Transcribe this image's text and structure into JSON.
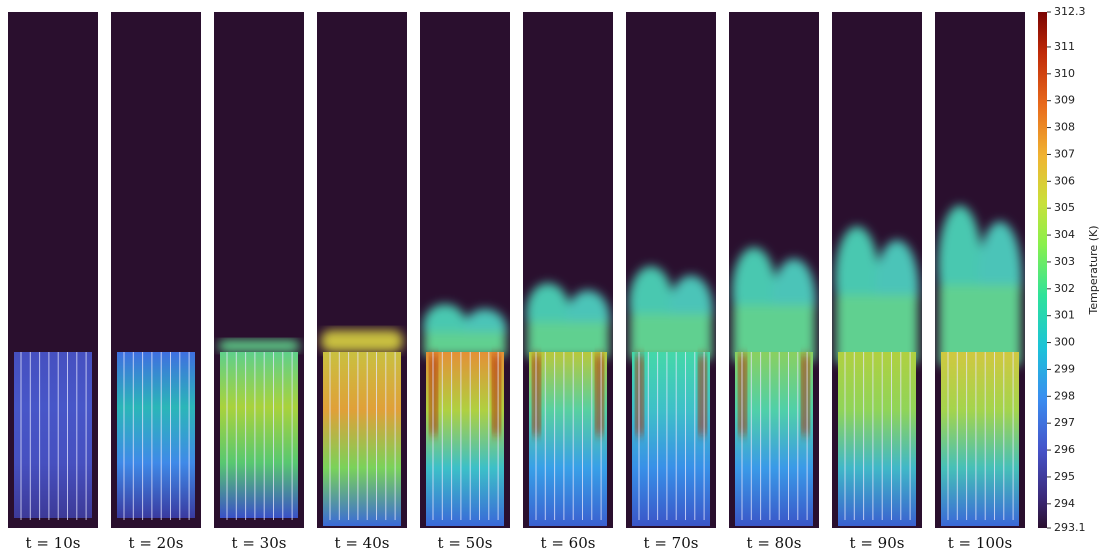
{
  "panels": [
    {
      "label": "t = 10s"
    },
    {
      "label": "t = 20s"
    },
    {
      "label": "t = 30s"
    },
    {
      "label": "t = 40s"
    },
    {
      "label": "t = 50s"
    },
    {
      "label": "t = 60s"
    },
    {
      "label": "t = 70s"
    },
    {
      "label": "t = 80s"
    },
    {
      "label": "t = 90s"
    },
    {
      "label": "t = 100s"
    }
  ],
  "colorbar": {
    "title": "Temperature (K)",
    "min": 293.1,
    "max": 312.3,
    "ticks": [
      294,
      295,
      296,
      297,
      298,
      299,
      300,
      301,
      302,
      303,
      304,
      305,
      306,
      307,
      308,
      309,
      310,
      311
    ]
  }
}
